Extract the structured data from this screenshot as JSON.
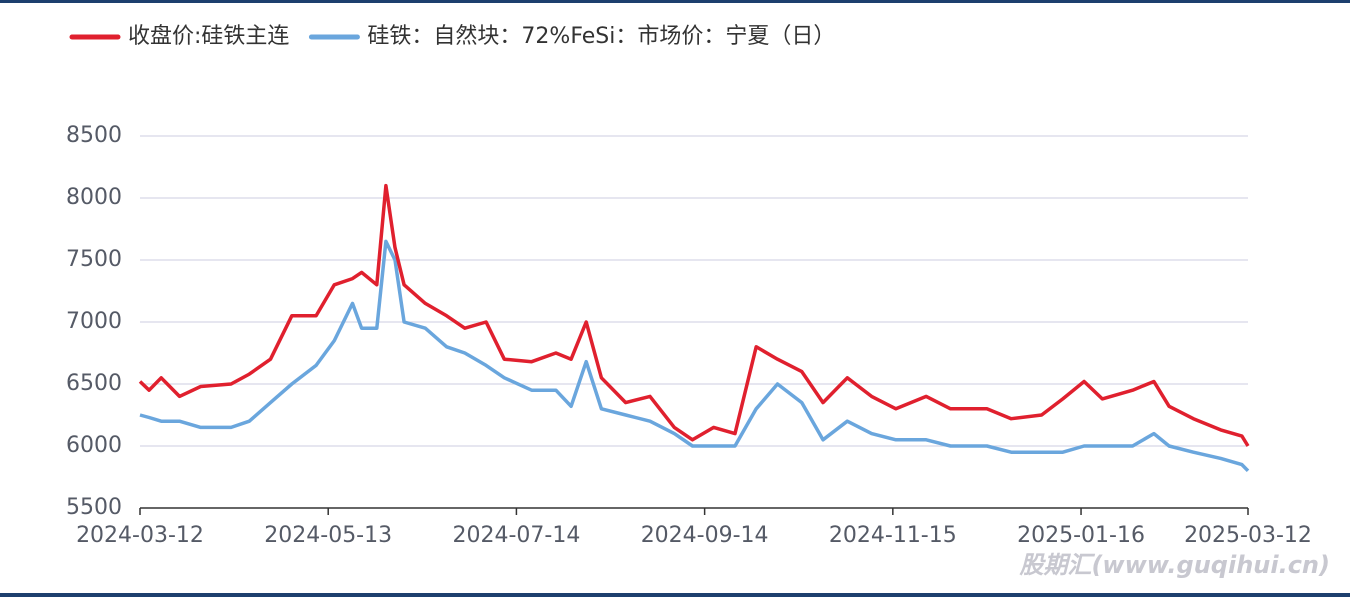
{
  "chart_data": {
    "type": "line",
    "series": [
      {
        "name": "收盘价:硅铁主连",
        "color": "#e0202e",
        "values": [
          6520,
          6450,
          6550,
          6400,
          6480,
          6500,
          6580,
          6700,
          7050,
          7050,
          7300,
          7350,
          7400,
          7300,
          8100,
          7600,
          7300,
          7150,
          7050,
          6950,
          7000,
          6700,
          6680,
          6750,
          6700,
          7000,
          6550,
          6350,
          6400,
          6150,
          6050,
          6150,
          6100,
          6800,
          6700,
          6600,
          6350,
          6550,
          6400,
          6300,
          6400,
          6300,
          6300,
          6220,
          6250,
          6380,
          6520,
          6380,
          6450,
          6520,
          6320,
          6220,
          6130,
          6080,
          6000
        ]
      },
      {
        "name": "硅铁：自然块：72%FeSi：市场价：宁夏（日）",
        "color": "#6aa6dd",
        "values": [
          6250,
          6230,
          6200,
          6200,
          6150,
          6150,
          6200,
          6350,
          6500,
          6650,
          6850,
          7150,
          6950,
          6950,
          7650,
          7500,
          7000,
          6950,
          6800,
          6750,
          6650,
          6550,
          6450,
          6450,
          6320,
          6680,
          6300,
          6250,
          6200,
          6100,
          6000,
          6000,
          6000,
          6300,
          6500,
          6350,
          6050,
          6200,
          6100,
          6050,
          6050,
          6000,
          6000,
          5950,
          5950,
          5950,
          6000,
          6000,
          6000,
          6100,
          6000,
          5950,
          5900,
          5850,
          5800
        ]
      }
    ],
    "x": [
      "2024-03-12",
      "2024-03-15",
      "2024-03-19",
      "2024-03-25",
      "2024-04-01",
      "2024-04-11",
      "2024-04-17",
      "2024-04-24",
      "2024-05-01",
      "2024-05-09",
      "2024-05-15",
      "2024-05-21",
      "2024-05-24",
      "2024-05-29",
      "2024-06-01",
      "2024-06-04",
      "2024-06-07",
      "2024-06-14",
      "2024-06-21",
      "2024-06-27",
      "2024-07-04",
      "2024-07-10",
      "2024-07-19",
      "2024-07-27",
      "2024-08-01",
      "2024-08-06",
      "2024-08-11",
      "2024-08-19",
      "2024-08-27",
      "2024-09-04",
      "2024-09-10",
      "2024-09-17",
      "2024-09-24",
      "2024-10-01",
      "2024-10-08",
      "2024-10-16",
      "2024-10-23",
      "2024-10-31",
      "2024-11-08",
      "2024-11-16",
      "2024-11-26",
      "2024-12-04",
      "2024-12-16",
      "2024-12-24",
      "2025-01-03",
      "2025-01-10",
      "2025-01-17",
      "2025-01-23",
      "2025-02-02",
      "2025-02-09",
      "2025-02-14",
      "2025-02-22",
      "2025-03-03",
      "2025-03-10",
      "2025-03-12"
    ],
    "xlim": [
      "2024-03-12",
      "2025-03-12"
    ],
    "xticks": [
      "2024-03-12",
      "2024-05-13",
      "2024-07-14",
      "2024-09-14",
      "2024-11-15",
      "2025-01-16",
      "2025-03-12"
    ],
    "ylim": [
      5500,
      8500
    ],
    "yticks": [
      5500,
      6000,
      6500,
      7000,
      7500,
      8000,
      8500
    ],
    "grid": true,
    "legend": "top-left",
    "watermark": "股期汇(www.guqihui.cn)"
  }
}
